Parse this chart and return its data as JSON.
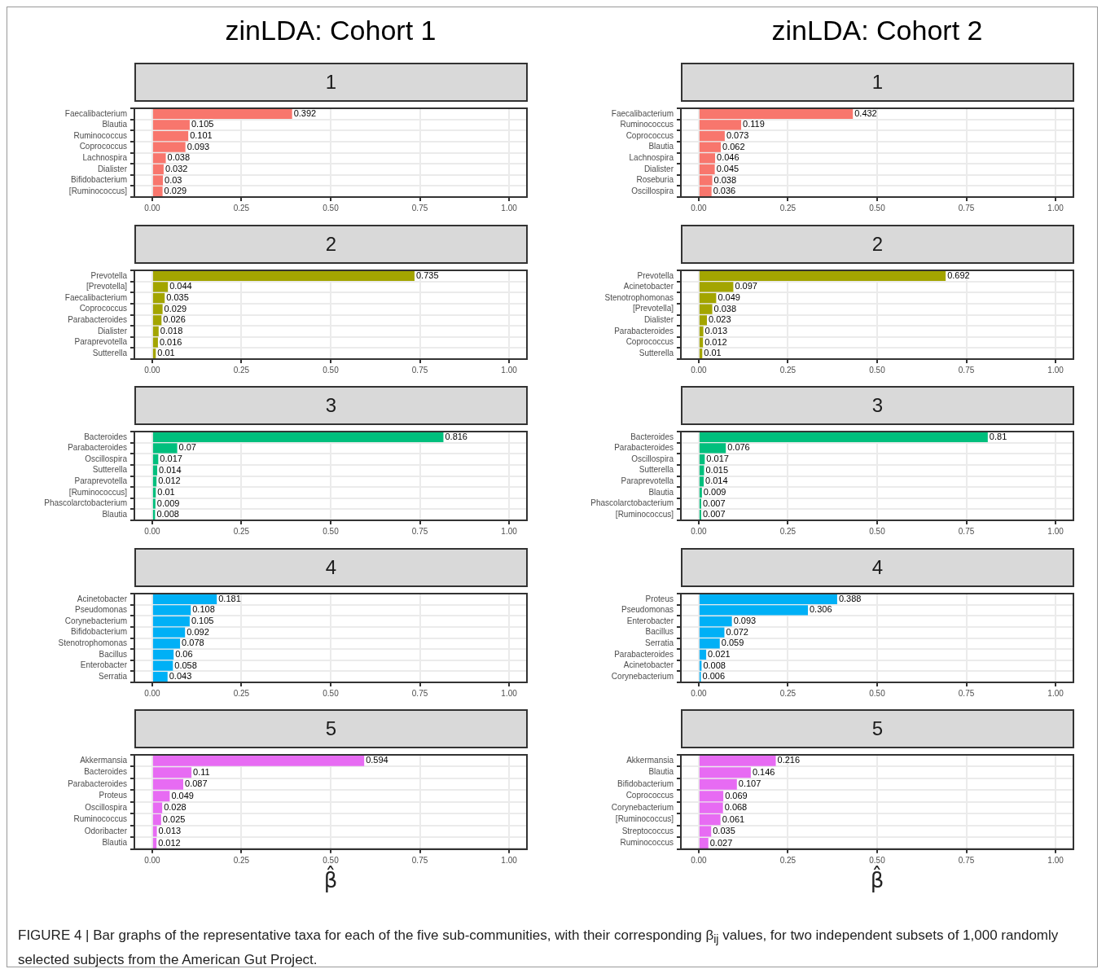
{
  "chart_data": [
    {
      "type": "bar",
      "orientation": "horizontal",
      "title": "zinLDA: Cohort 1",
      "subtitle": "1",
      "color": "#f8766d",
      "grid": true,
      "data_labels": true,
      "xlim": [
        -0.05,
        1.05
      ],
      "xticks": [
        {
          "value": 0,
          "label": "0.00"
        },
        {
          "value": 0.25,
          "label": "0.25"
        },
        {
          "value": 0.5,
          "label": "0.50"
        },
        {
          "value": 0.75,
          "label": "0.75"
        },
        {
          "value": 1,
          "label": "1.00"
        }
      ],
      "categories": [
        "Faecalibacterium",
        "Blautia",
        "Ruminococcus",
        "Coprococcus",
        "Lachnospira",
        "Dialister",
        "Bifidobacterium",
        "[Ruminococcus]"
      ],
      "values": [
        0.392,
        0.105,
        0.101,
        0.093,
        0.038,
        0.032,
        0.03,
        0.029
      ]
    },
    {
      "type": "bar",
      "orientation": "horizontal",
      "title": "zinLDA: Cohort 2",
      "subtitle": "1",
      "color": "#f8766d",
      "grid": true,
      "data_labels": true,
      "xlim": [
        -0.05,
        1.05
      ],
      "xticks": [
        {
          "value": 0,
          "label": "0.00"
        },
        {
          "value": 0.25,
          "label": "0.25"
        },
        {
          "value": 0.5,
          "label": "0.50"
        },
        {
          "value": 0.75,
          "label": "0.75"
        },
        {
          "value": 1,
          "label": "1.00"
        }
      ],
      "categories": [
        "Faecalibacterium",
        "Ruminococcus",
        "Coprococcus",
        "Blautia",
        "Lachnospira",
        "Dialister",
        "Roseburia",
        "Oscillospira"
      ],
      "values": [
        0.432,
        0.119,
        0.073,
        0.062,
        0.046,
        0.045,
        0.038,
        0.036
      ]
    },
    {
      "type": "bar",
      "orientation": "horizontal",
      "title": "2",
      "color": "#a3a500",
      "grid": true,
      "data_labels": true,
      "xlim": [
        -0.05,
        1.05
      ],
      "xticks": [
        {
          "value": 0,
          "label": "0.00"
        },
        {
          "value": 0.25,
          "label": "0.25"
        },
        {
          "value": 0.5,
          "label": "0.50"
        },
        {
          "value": 0.75,
          "label": "0.75"
        },
        {
          "value": 1,
          "label": "1.00"
        }
      ],
      "categories": [
        "Prevotella",
        "[Prevotella]",
        "Faecalibacterium",
        "Coprococcus",
        "Parabacteroides",
        "Dialister",
        "Paraprevotella",
        "Sutterella"
      ],
      "values": [
        0.735,
        0.044,
        0.035,
        0.029,
        0.026,
        0.018,
        0.016,
        0.01
      ]
    },
    {
      "type": "bar",
      "orientation": "horizontal",
      "title": "2",
      "color": "#a3a500",
      "grid": true,
      "data_labels": true,
      "xlim": [
        -0.05,
        1.05
      ],
      "xticks": [
        {
          "value": 0,
          "label": "0.00"
        },
        {
          "value": 0.25,
          "label": "0.25"
        },
        {
          "value": 0.5,
          "label": "0.50"
        },
        {
          "value": 0.75,
          "label": "0.75"
        },
        {
          "value": 1,
          "label": "1.00"
        }
      ],
      "categories": [
        "Prevotella",
        "Acinetobacter",
        "Stenotrophomonas",
        "[Prevotella]",
        "Dialister",
        "Parabacteroides",
        "Coprococcus",
        "Sutterella"
      ],
      "values": [
        0.692,
        0.097,
        0.049,
        0.038,
        0.023,
        0.013,
        0.012,
        0.01
      ]
    },
    {
      "type": "bar",
      "orientation": "horizontal",
      "title": "3",
      "color": "#00bf7d",
      "grid": true,
      "data_labels": true,
      "xlim": [
        -0.05,
        1.05
      ],
      "xticks": [
        {
          "value": 0,
          "label": "0.00"
        },
        {
          "value": 0.25,
          "label": "0.25"
        },
        {
          "value": 0.5,
          "label": "0.50"
        },
        {
          "value": 0.75,
          "label": "0.75"
        },
        {
          "value": 1,
          "label": "1.00"
        }
      ],
      "categories": [
        "Bacteroides",
        "Parabacteroides",
        "Oscillospira",
        "Sutterella",
        "Paraprevotella",
        "[Ruminococcus]",
        "Phascolarctobacterium",
        "Blautia"
      ],
      "values": [
        0.816,
        0.07,
        0.017,
        0.014,
        0.012,
        0.01,
        0.009,
        0.008
      ]
    },
    {
      "type": "bar",
      "orientation": "horizontal",
      "title": "3",
      "color": "#00bf7d",
      "grid": true,
      "data_labels": true,
      "xlim": [
        -0.05,
        1.05
      ],
      "xticks": [
        {
          "value": 0,
          "label": "0.00"
        },
        {
          "value": 0.25,
          "label": "0.25"
        },
        {
          "value": 0.5,
          "label": "0.50"
        },
        {
          "value": 0.75,
          "label": "0.75"
        },
        {
          "value": 1,
          "label": "1.00"
        }
      ],
      "categories": [
        "Bacteroides",
        "Parabacteroides",
        "Oscillospira",
        "Sutterella",
        "Paraprevotella",
        "Blautia",
        "Phascolarctobacterium",
        "[Ruminococcus]"
      ],
      "values": [
        0.81,
        0.076,
        0.017,
        0.015,
        0.014,
        0.009,
        0.007,
        0.007
      ]
    },
    {
      "type": "bar",
      "orientation": "horizontal",
      "title": "4",
      "color": "#00b0f6",
      "grid": true,
      "data_labels": true,
      "xlim": [
        -0.05,
        1.05
      ],
      "xticks": [
        {
          "value": 0,
          "label": "0.00"
        },
        {
          "value": 0.25,
          "label": "0.25"
        },
        {
          "value": 0.5,
          "label": "0.50"
        },
        {
          "value": 0.75,
          "label": "0.75"
        },
        {
          "value": 1,
          "label": "1.00"
        }
      ],
      "categories": [
        "Acinetobacter",
        "Pseudomonas",
        "Corynebacterium",
        "Bifidobacterium",
        "Stenotrophomonas",
        "Bacillus",
        "Enterobacter",
        "Serratia"
      ],
      "values": [
        0.181,
        0.108,
        0.105,
        0.092,
        0.078,
        0.06,
        0.058,
        0.043
      ]
    },
    {
      "type": "bar",
      "orientation": "horizontal",
      "title": "4",
      "color": "#00b0f6",
      "grid": true,
      "data_labels": true,
      "xlim": [
        -0.05,
        1.05
      ],
      "xticks": [
        {
          "value": 0,
          "label": "0.00"
        },
        {
          "value": 0.25,
          "label": "0.25"
        },
        {
          "value": 0.5,
          "label": "0.50"
        },
        {
          "value": 0.75,
          "label": "0.75"
        },
        {
          "value": 1,
          "label": "1.00"
        }
      ],
      "categories": [
        "Proteus",
        "Pseudomonas",
        "Enterobacter",
        "Bacillus",
        "Serratia",
        "Parabacteroides",
        "Acinetobacter",
        "Corynebacterium"
      ],
      "values": [
        0.388,
        0.306,
        0.093,
        0.072,
        0.059,
        0.021,
        0.008,
        0.006
      ]
    },
    {
      "type": "bar",
      "orientation": "horizontal",
      "title": "5",
      "xlabel": "β̂",
      "color": "#e76bf3",
      "grid": true,
      "data_labels": true,
      "xlim": [
        -0.05,
        1.05
      ],
      "xticks": [
        {
          "value": 0,
          "label": "0.00"
        },
        {
          "value": 0.25,
          "label": "0.25"
        },
        {
          "value": 0.5,
          "label": "0.50"
        },
        {
          "value": 0.75,
          "label": "0.75"
        },
        {
          "value": 1,
          "label": "1.00"
        }
      ],
      "categories": [
        "Akkermansia",
        "Bacteroides",
        "Parabacteroides",
        "Proteus",
        "Oscillospira",
        "Ruminococcus",
        "Odoribacter",
        "Blautia"
      ],
      "values": [
        0.594,
        0.11,
        0.087,
        0.049,
        0.028,
        0.025,
        0.013,
        0.012
      ]
    },
    {
      "type": "bar",
      "orientation": "horizontal",
      "title": "5",
      "xlabel": "β̂",
      "color": "#e76bf3",
      "grid": true,
      "data_labels": true,
      "xlim": [
        -0.05,
        1.05
      ],
      "xticks": [
        {
          "value": 0,
          "label": "0.00"
        },
        {
          "value": 0.25,
          "label": "0.25"
        },
        {
          "value": 0.5,
          "label": "0.50"
        },
        {
          "value": 0.75,
          "label": "0.75"
        },
        {
          "value": 1,
          "label": "1.00"
        }
      ],
      "categories": [
        "Akkermansia",
        "Blautia",
        "Bifidobacterium",
        "Coprococcus",
        "Corynebacterium",
        "[Ruminococcus]",
        "Streptococcus",
        "Ruminococcus"
      ],
      "values": [
        0.216,
        0.146,
        0.107,
        0.069,
        0.068,
        0.061,
        0.035,
        0.027
      ],
      "annotations": [
        "FIGURE 4 | Bar graphs of the representative taxa for each of the five sub-communities, with their corresponding β$_{ij}$ values, for two independent subsets of 1,000 randomly selected subjects from the American Gut Project."
      ]
    }
  ]
}
